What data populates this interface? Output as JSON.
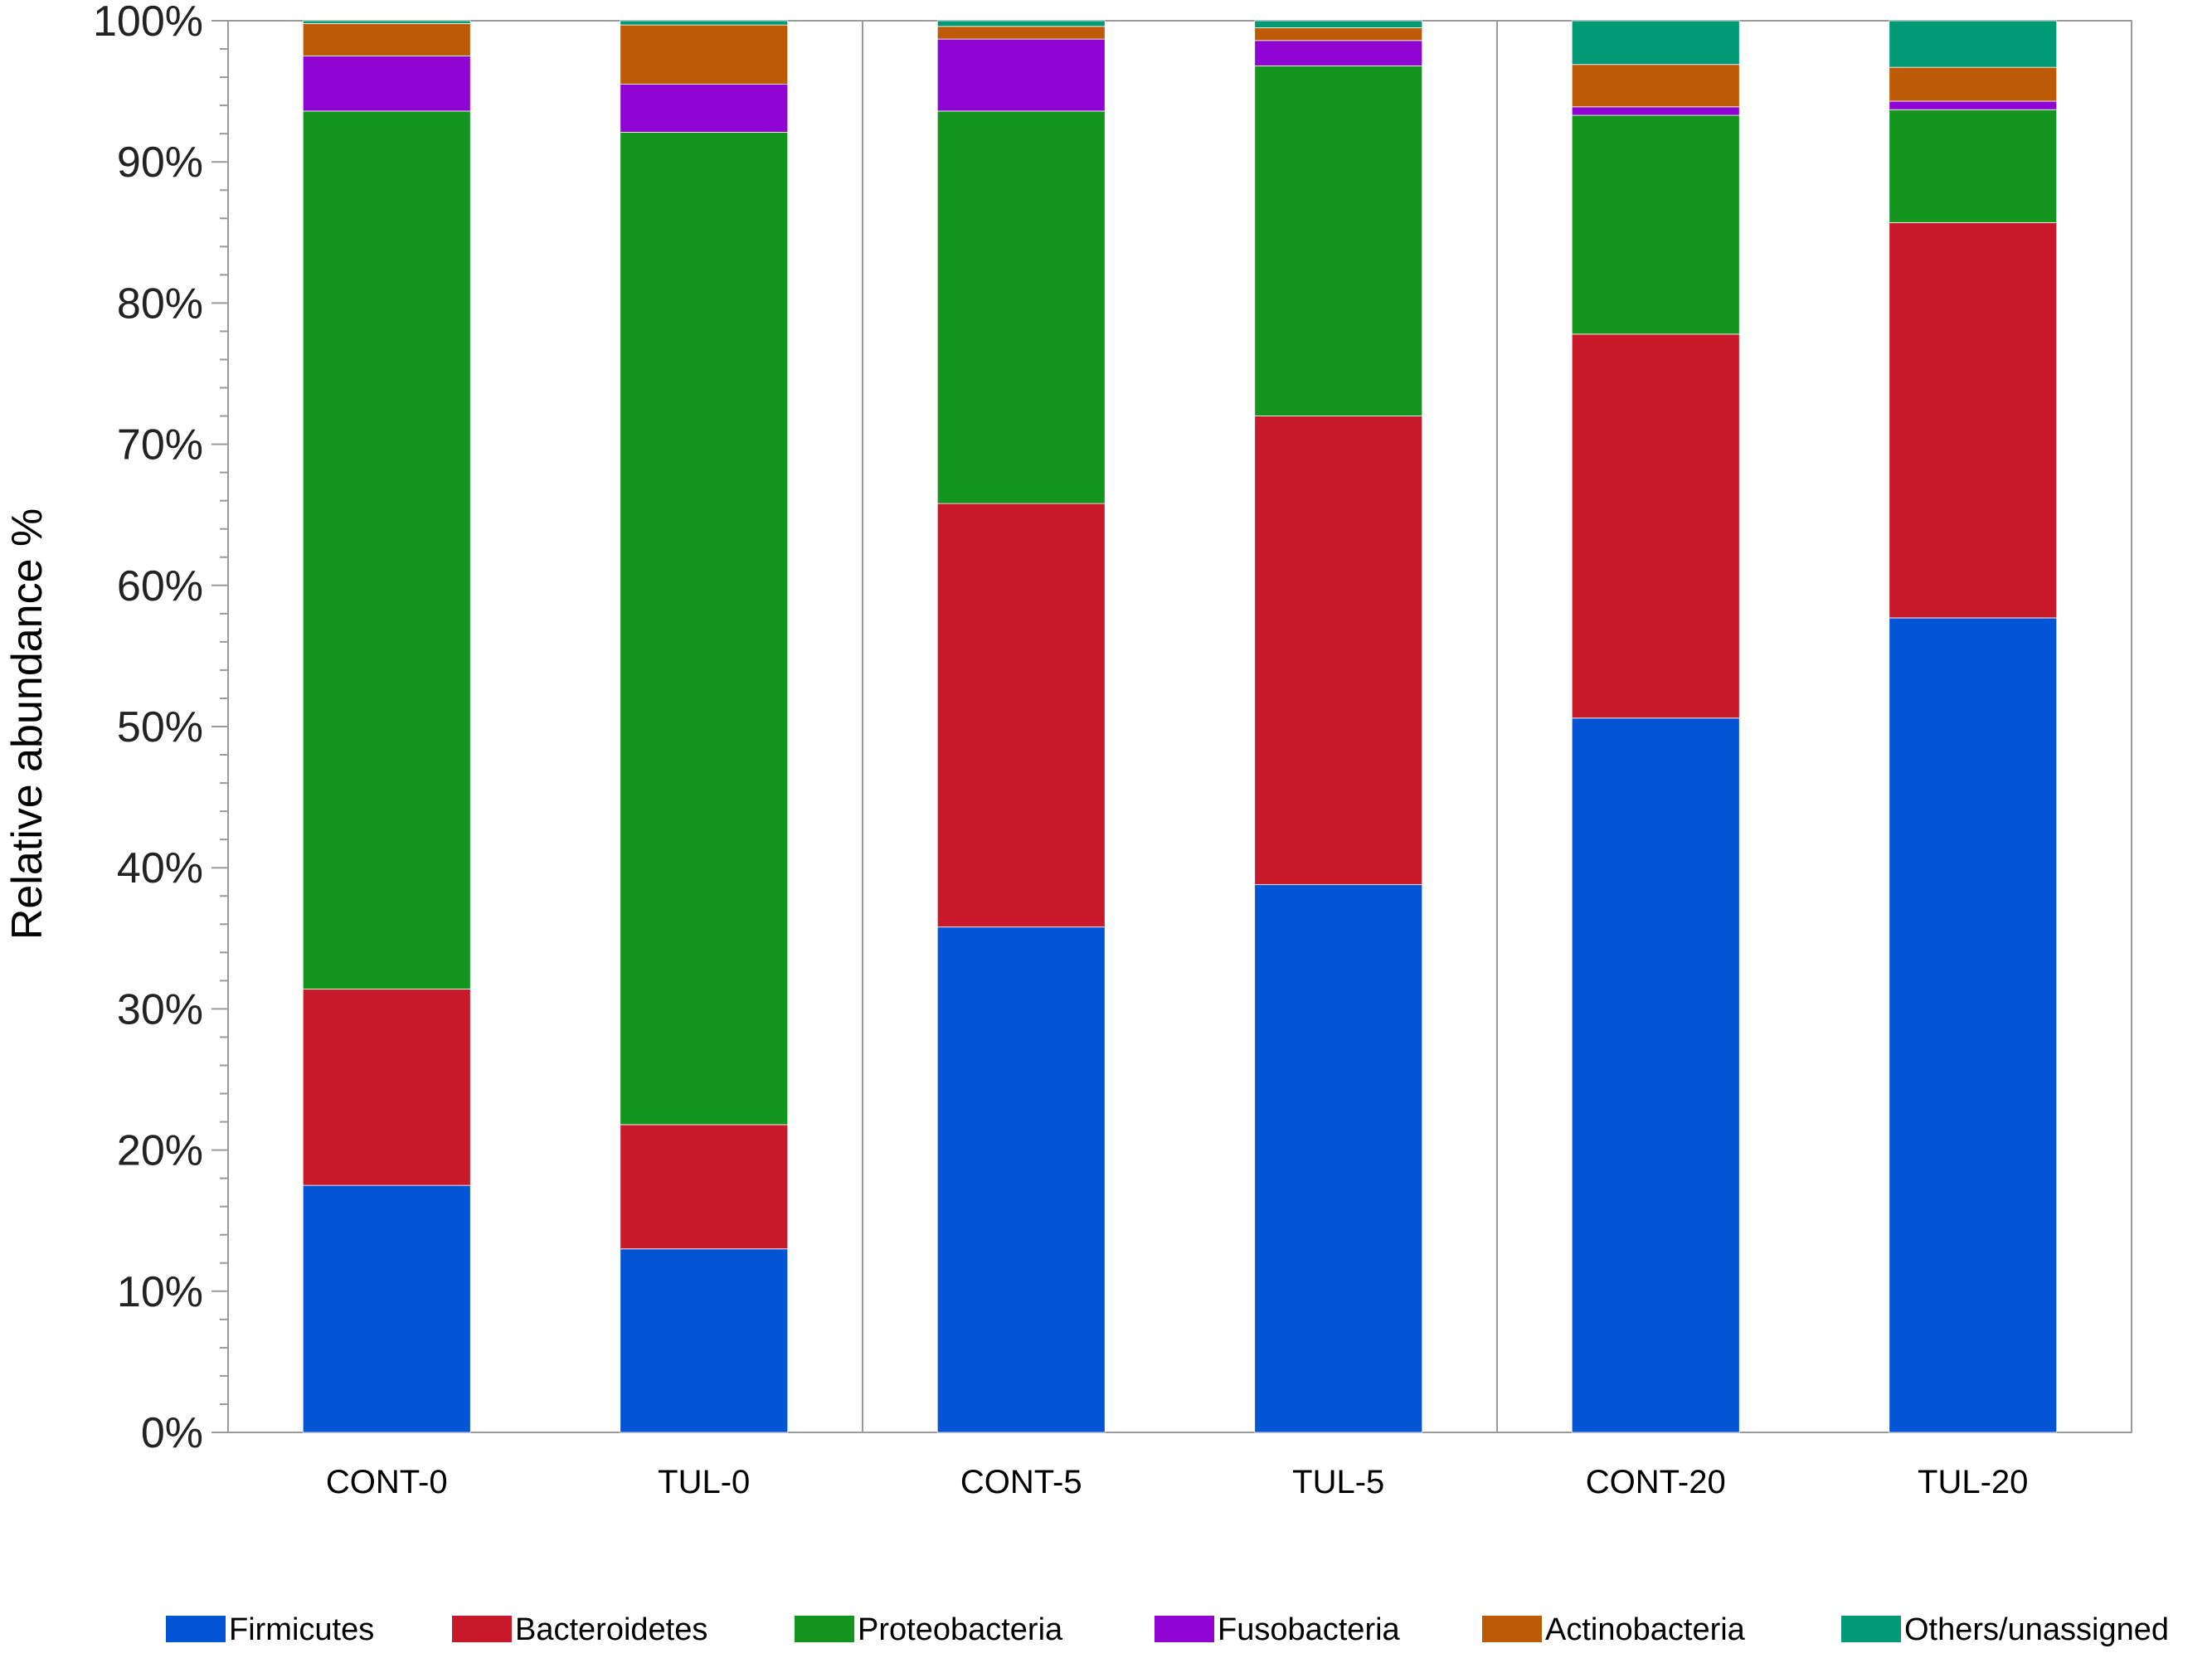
{
  "chart_data": {
    "type": "bar",
    "stacked": true,
    "ylabel": "Relative abundance %",
    "ylim": [
      0,
      100
    ],
    "y_ticks": [
      "0%",
      "10%",
      "20%",
      "30%",
      "40%",
      "50%",
      "60%",
      "70%",
      "80%",
      "90%",
      "100%"
    ],
    "categories": [
      "CONT-0",
      "TUL-0",
      "CONT-5",
      "TUL-5",
      "CONT-20",
      "TUL-20"
    ],
    "groups": [
      [
        "CONT-0",
        "TUL-0"
      ],
      [
        "CONT-5",
        "TUL-5"
      ],
      [
        "CONT-20",
        "TUL-20"
      ]
    ],
    "legend_position": "bottom",
    "series": [
      {
        "name": "Firmicutes",
        "color": "#0455D6",
        "values": [
          17.5,
          13.0,
          35.8,
          38.8,
          50.6,
          57.7
        ]
      },
      {
        "name": "Bacteroidetes",
        "color": "#C8192B",
        "values": [
          13.9,
          8.8,
          30.0,
          33.2,
          27.2,
          28.0
        ]
      },
      {
        "name": "Proteobacteria",
        "color": "#14961E",
        "values": [
          62.2,
          70.3,
          27.8,
          24.8,
          15.5,
          8.0
        ]
      },
      {
        "name": "Fusobacteria",
        "color": "#8E05D3",
        "values": [
          3.9,
          3.4,
          5.1,
          1.8,
          0.6,
          0.6
        ]
      },
      {
        "name": "Actinobacteria",
        "color": "#BD5A05",
        "values": [
          2.3,
          4.2,
          0.9,
          0.9,
          3.0,
          2.4
        ]
      },
      {
        "name": "Others/unassigned",
        "color": "#009975",
        "values": [
          0.2,
          0.3,
          0.4,
          0.5,
          3.1,
          3.3
        ]
      }
    ]
  }
}
